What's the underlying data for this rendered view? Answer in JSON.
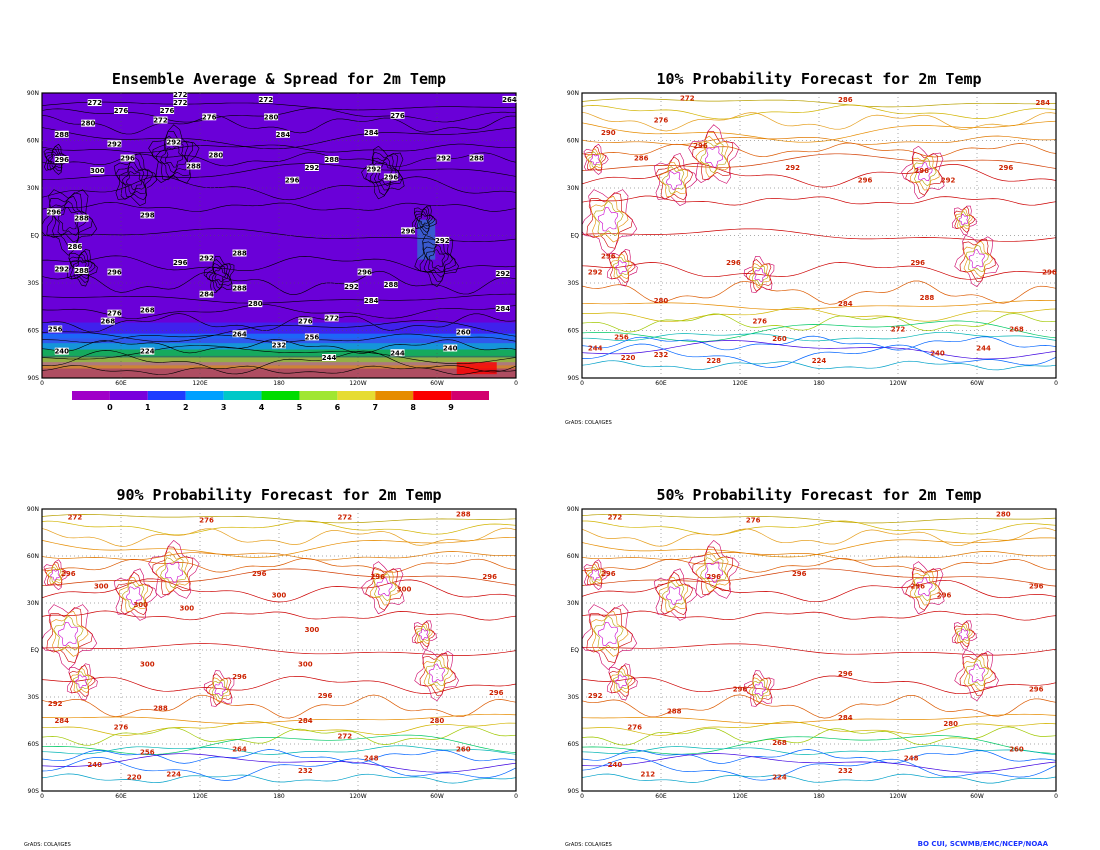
{
  "panels": [
    {
      "id": "ens",
      "title": "Ensemble Average & Spread for 2m Temp",
      "credit": ""
    },
    {
      "id": "p10",
      "title": "10% Probability Forecast for 2m Temp",
      "credit": "GrADS: COLA/IGES"
    },
    {
      "id": "p90",
      "title": "90% Probability Forecast for 2m Temp",
      "credit": "GrADS: COLA/IGES"
    },
    {
      "id": "p50",
      "title": "50% Probability Forecast for 2m Temp",
      "credit": "GrADS: COLA/IGES"
    }
  ],
  "axes": {
    "lat_ticks": [
      "90N",
      "60N",
      "30N",
      "EQ",
      "30S",
      "60S",
      "90S"
    ],
    "lon_ticks": [
      "0",
      "60E",
      "120E",
      "180",
      "120W",
      "60W",
      "0"
    ]
  },
  "colorbar": {
    "labels": [
      "0",
      "1",
      "2",
      "3",
      "4",
      "5",
      "6",
      "7",
      "8",
      "9"
    ],
    "colors": [
      "#a000c8",
      "#7800dc",
      "#1e3cff",
      "#00a0ff",
      "#00c8c8",
      "#00dc00",
      "#a0e632",
      "#e6dc32",
      "#e68c00",
      "#fa0000",
      "#d2006e"
    ]
  },
  "ens_labels": [
    {
      "t": "272",
      "lon": 40,
      "lat": 83
    },
    {
      "t": "272",
      "lon": 105,
      "lat": 88
    },
    {
      "t": "272",
      "lon": 105,
      "lat": 83
    },
    {
      "t": "276",
      "lon": 60,
      "lat": 78
    },
    {
      "t": "276",
      "lon": 95,
      "lat": 78
    },
    {
      "t": "280",
      "lon": 35,
      "lat": 70
    },
    {
      "t": "272",
      "lon": 90,
      "lat": 72
    },
    {
      "t": "276",
      "lon": 127,
      "lat": 74
    },
    {
      "t": "288",
      "lon": 15,
      "lat": 63
    },
    {
      "t": "292",
      "lon": 55,
      "lat": 57
    },
    {
      "t": "296",
      "lon": 65,
      "lat": 48
    },
    {
      "t": "300",
      "lon": 42,
      "lat": 40
    },
    {
      "t": "296",
      "lon": 15,
      "lat": 47
    },
    {
      "t": "292",
      "lon": 100,
      "lat": 58
    },
    {
      "t": "288",
      "lon": 115,
      "lat": 43
    },
    {
      "t": "280",
      "lon": 132,
      "lat": 50
    },
    {
      "t": "292",
      "lon": 205,
      "lat": 42
    },
    {
      "t": "288",
      "lon": 220,
      "lat": 47
    },
    {
      "t": "284",
      "lon": 250,
      "lat": 64
    },
    {
      "t": "276",
      "lon": 270,
      "lat": 75
    },
    {
      "t": "272",
      "lon": 170,
      "lat": 85
    },
    {
      "t": "280",
      "lon": 174,
      "lat": 74
    },
    {
      "t": "284",
      "lon": 183,
      "lat": 63
    },
    {
      "t": "296",
      "lon": 190,
      "lat": 34
    },
    {
      "t": "292",
      "lon": 252,
      "lat": 41
    },
    {
      "t": "296",
      "lon": 265,
      "lat": 36
    },
    {
      "t": "292",
      "lon": 305,
      "lat": 48
    },
    {
      "t": "288",
      "lon": 330,
      "lat": 48
    },
    {
      "t": "264",
      "lon": 355,
      "lat": 85
    },
    {
      "t": "296",
      "lon": 9,
      "lat": 14
    },
    {
      "t": "288",
      "lon": 30,
      "lat": 10
    },
    {
      "t": "298",
      "lon": 80,
      "lat": 12
    },
    {
      "t": "296",
      "lon": 278,
      "lat": 2
    },
    {
      "t": "292",
      "lon": 304,
      "lat": -4
    },
    {
      "t": "286",
      "lon": 25,
      "lat": -8
    },
    {
      "t": "292",
      "lon": 15,
      "lat": -22
    },
    {
      "t": "288",
      "lon": 30,
      "lat": -23
    },
    {
      "t": "296",
      "lon": 55,
      "lat": -24
    },
    {
      "t": "296",
      "lon": 105,
      "lat": -18
    },
    {
      "t": "288",
      "lon": 150,
      "lat": -12
    },
    {
      "t": "292",
      "lon": 125,
      "lat": -15
    },
    {
      "t": "296",
      "lon": 245,
      "lat": -24
    },
    {
      "t": "292",
      "lon": 235,
      "lat": -33
    },
    {
      "t": "288",
      "lon": 265,
      "lat": -32
    },
    {
      "t": "292",
      "lon": 350,
      "lat": -25
    },
    {
      "t": "284",
      "lon": 350,
      "lat": -47
    },
    {
      "t": "284",
      "lon": 125,
      "lat": -38
    },
    {
      "t": "288",
      "lon": 150,
      "lat": -34
    },
    {
      "t": "280",
      "lon": 162,
      "lat": -44
    },
    {
      "t": "284",
      "lon": 250,
      "lat": -42
    },
    {
      "t": "276",
      "lon": 55,
      "lat": -50
    },
    {
      "t": "268",
      "lon": 50,
      "lat": -55
    },
    {
      "t": "268",
      "lon": 80,
      "lat": -48
    },
    {
      "t": "276",
      "lon": 200,
      "lat": -55
    },
    {
      "t": "272",
      "lon": 220,
      "lat": -53
    },
    {
      "t": "264",
      "lon": 150,
      "lat": -63
    },
    {
      "t": "256",
      "lon": 205,
      "lat": -65
    },
    {
      "t": "240",
      "lon": 15,
      "lat": -74
    },
    {
      "t": "224",
      "lon": 80,
      "lat": -74
    },
    {
      "t": "232",
      "lon": 180,
      "lat": -70
    },
    {
      "t": "244",
      "lon": 218,
      "lat": -78
    },
    {
      "t": "244",
      "lon": 270,
      "lat": -75
    },
    {
      "t": "240",
      "lon": 310,
      "lat": -72
    },
    {
      "t": "260",
      "lon": 320,
      "lat": -62
    },
    {
      "t": "256",
      "lon": 10,
      "lat": -60
    }
  ],
  "p10_labels": [
    {
      "t": "272",
      "lon": 80,
      "lat": 86
    },
    {
      "t": "276",
      "lon": 60,
      "lat": 72
    },
    {
      "t": "286",
      "lon": 200,
      "lat": 85
    },
    {
      "t": "284",
      "lon": 350,
      "lat": 83
    },
    {
      "t": "290",
      "lon": 20,
      "lat": 64
    },
    {
      "t": "296",
      "lon": 90,
      "lat": 56
    },
    {
      "t": "286",
      "lon": 45,
      "lat": 48
    },
    {
      "t": "292",
      "lon": 160,
      "lat": 42
    },
    {
      "t": "296",
      "lon": 215,
      "lat": 34
    },
    {
      "t": "296",
      "lon": 258,
      "lat": 40
    },
    {
      "t": "292",
      "lon": 278,
      "lat": 34
    },
    {
      "t": "296",
      "lon": 322,
      "lat": 42
    },
    {
      "t": "296",
      "lon": 255,
      "lat": -18
    },
    {
      "t": "296",
      "lon": 355,
      "lat": -24
    },
    {
      "t": "296",
      "lon": 115,
      "lat": -18
    },
    {
      "t": "296",
      "lon": 20,
      "lat": -14
    },
    {
      "t": "292",
      "lon": 10,
      "lat": -24
    },
    {
      "t": "288",
      "lon": 262,
      "lat": -40
    },
    {
      "t": "284",
      "lon": 200,
      "lat": -44
    },
    {
      "t": "280",
      "lon": 60,
      "lat": -42
    },
    {
      "t": "276",
      "lon": 135,
      "lat": -55
    },
    {
      "t": "272",
      "lon": 240,
      "lat": -60
    },
    {
      "t": "268",
      "lon": 330,
      "lat": -60
    },
    {
      "t": "260",
      "lon": 150,
      "lat": -66
    },
    {
      "t": "256",
      "lon": 30,
      "lat": -65
    },
    {
      "t": "244",
      "lon": 10,
      "lat": -72
    },
    {
      "t": "232",
      "lon": 60,
      "lat": -76
    },
    {
      "t": "224",
      "lon": 180,
      "lat": -80
    },
    {
      "t": "240",
      "lon": 270,
      "lat": -75
    },
    {
      "t": "244",
      "lon": 305,
      "lat": -72
    },
    {
      "t": "220",
      "lon": 35,
      "lat": -78
    },
    {
      "t": "228",
      "lon": 100,
      "lat": -80
    }
  ],
  "p90_labels": [
    {
      "t": "272",
      "lon": 25,
      "lat": 84
    },
    {
      "t": "276",
      "lon": 125,
      "lat": 82
    },
    {
      "t": "272",
      "lon": 230,
      "lat": 84
    },
    {
      "t": "288",
      "lon": 320,
      "lat": 86
    },
    {
      "t": "296",
      "lon": 20,
      "lat": 48
    },
    {
      "t": "300",
      "lon": 45,
      "lat": 40
    },
    {
      "t": "300",
      "lon": 75,
      "lat": 28
    },
    {
      "t": "300",
      "lon": 110,
      "lat": 26
    },
    {
      "t": "296",
      "lon": 165,
      "lat": 48
    },
    {
      "t": "300",
      "lon": 180,
      "lat": 34
    },
    {
      "t": "296",
      "lon": 255,
      "lat": 46
    },
    {
      "t": "300",
      "lon": 275,
      "lat": 38
    },
    {
      "t": "296",
      "lon": 340,
      "lat": 46
    },
    {
      "t": "300",
      "lon": 205,
      "lat": 12
    },
    {
      "t": "300",
      "lon": 80,
      "lat": -10
    },
    {
      "t": "300",
      "lon": 200,
      "lat": -10
    },
    {
      "t": "296",
      "lon": 150,
      "lat": -18
    },
    {
      "t": "296",
      "lon": 215,
      "lat": -30
    },
    {
      "t": "296",
      "lon": 345,
      "lat": -28
    },
    {
      "t": "292",
      "lon": 10,
      "lat": -35
    },
    {
      "t": "288",
      "lon": 90,
      "lat": -38
    },
    {
      "t": "284",
      "lon": 15,
      "lat": -46
    },
    {
      "t": "284",
      "lon": 200,
      "lat": -46
    },
    {
      "t": "280",
      "lon": 300,
      "lat": -46
    },
    {
      "t": "276",
      "lon": 60,
      "lat": -50
    },
    {
      "t": "272",
      "lon": 230,
      "lat": -56
    },
    {
      "t": "264",
      "lon": 150,
      "lat": -64
    },
    {
      "t": "256",
      "lon": 80,
      "lat": -66
    },
    {
      "t": "248",
      "lon": 250,
      "lat": -70
    },
    {
      "t": "240",
      "lon": 40,
      "lat": -74
    },
    {
      "t": "232",
      "lon": 200,
      "lat": -78
    },
    {
      "t": "224",
      "lon": 100,
      "lat": -80
    },
    {
      "t": "220",
      "lon": 70,
      "lat": -82
    },
    {
      "t": "260",
      "lon": 320,
      "lat": -64
    }
  ],
  "p50_labels": [
    {
      "t": "272",
      "lon": 25,
      "lat": 84
    },
    {
      "t": "276",
      "lon": 130,
      "lat": 82
    },
    {
      "t": "280",
      "lon": 320,
      "lat": 86
    },
    {
      "t": "296",
      "lon": 20,
      "lat": 48
    },
    {
      "t": "296",
      "lon": 100,
      "lat": 46
    },
    {
      "t": "296",
      "lon": 165,
      "lat": 48
    },
    {
      "t": "296",
      "lon": 255,
      "lat": 40
    },
    {
      "t": "296",
      "lon": 275,
      "lat": 34
    },
    {
      "t": "296",
      "lon": 345,
      "lat": 40
    },
    {
      "t": "296",
      "lon": 200,
      "lat": -16
    },
    {
      "t": "296",
      "lon": 120,
      "lat": -26
    },
    {
      "t": "296",
      "lon": 345,
      "lat": -26
    },
    {
      "t": "292",
      "lon": 10,
      "lat": -30
    },
    {
      "t": "288",
      "lon": 70,
      "lat": -40
    },
    {
      "t": "284",
      "lon": 200,
      "lat": -44
    },
    {
      "t": "280",
      "lon": 280,
      "lat": -48
    },
    {
      "t": "276",
      "lon": 40,
      "lat": -50
    },
    {
      "t": "268",
      "lon": 150,
      "lat": -60
    },
    {
      "t": "260",
      "lon": 330,
      "lat": -64
    },
    {
      "t": "248",
      "lon": 250,
      "lat": -70
    },
    {
      "t": "240",
      "lon": 25,
      "lat": -74
    },
    {
      "t": "232",
      "lon": 200,
      "lat": -78
    },
    {
      "t": "224",
      "lon": 150,
      "lat": -82
    },
    {
      "t": "212",
      "lon": 50,
      "lat": -80
    }
  ],
  "footer": "BO CUI, SCWMB/EMC/NCEP/NOAA",
  "bottom_credits": [
    "GrADS: COLA/IGES",
    "GrADS: COLA/IGES"
  ]
}
